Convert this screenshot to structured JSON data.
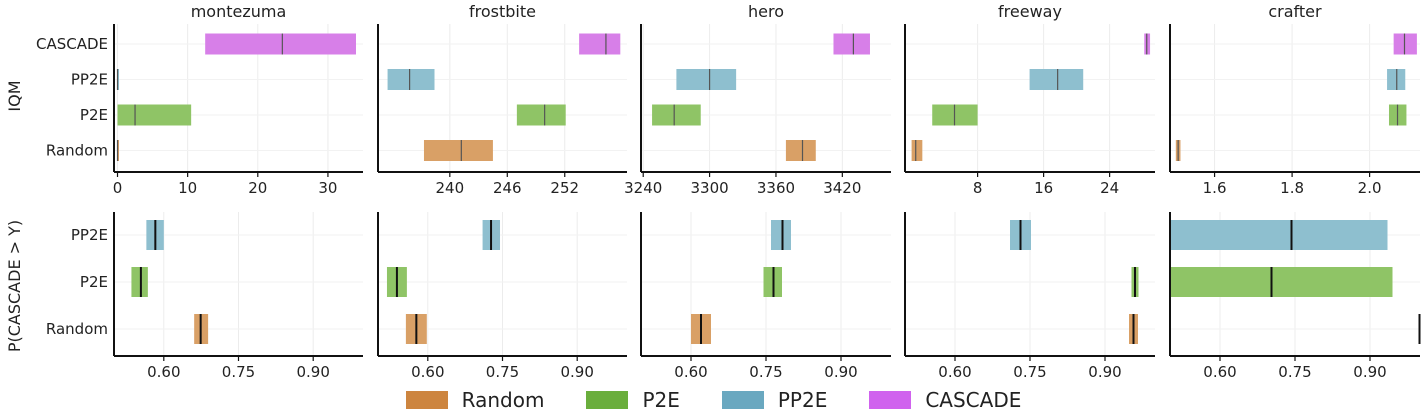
{
  "colors": {
    "Random": "#d9a066",
    "P2E": "#8fc466",
    "PP2E": "#8ebfcf",
    "CASCADE": "#d77fe8"
  },
  "legend_colors": {
    "Random": "#cd853f",
    "P2E": "#6aae3c",
    "PP2E": "#6aa8c0",
    "CASCADE": "#d062ee"
  },
  "row_labels": [
    "IQM",
    "P(CASCADE > Y)"
  ],
  "legend": [
    "Random",
    "P2E",
    "PP2E",
    "CASCADE"
  ],
  "chart_data": [
    {
      "type": "bar",
      "metric": "IQM",
      "title": "montezuma",
      "categories": [
        "CASCADE",
        "PP2E",
        "P2E",
        "Random"
      ],
      "xlim": [
        -0.5,
        35
      ],
      "xticks": [
        0,
        10,
        20,
        30
      ],
      "xtick_labels": [
        "0",
        "10",
        "20",
        "30"
      ],
      "intervals": [
        {
          "name": "CASCADE",
          "low": 12.5,
          "high": 34,
          "mid": 23.5
        },
        {
          "name": "PP2E",
          "low": 0,
          "high": 0,
          "mid": 0
        },
        {
          "name": "P2E",
          "low": 0,
          "high": 10.5,
          "mid": 2.5
        },
        {
          "name": "Random",
          "low": 0,
          "high": 0,
          "mid": 0
        }
      ]
    },
    {
      "type": "bar",
      "metric": "IQM",
      "title": "frostbite",
      "categories": [
        "CASCADE",
        "PP2E",
        "P2E",
        "Random"
      ],
      "xlim": [
        232.5,
        258.5
      ],
      "xticks": [
        240,
        246,
        252
      ],
      "xtick_labels": [
        "240",
        "246",
        "252"
      ],
      "intervals": [
        {
          "name": "CASCADE",
          "low": 253.5,
          "high": 257.8,
          "mid": 256.3
        },
        {
          "name": "PP2E",
          "low": 233.5,
          "high": 238.4,
          "mid": 235.8
        },
        {
          "name": "P2E",
          "low": 247,
          "high": 252.1,
          "mid": 249.9
        },
        {
          "name": "Random",
          "low": 237.3,
          "high": 244.5,
          "mid": 241.2
        }
      ]
    },
    {
      "type": "bar",
      "metric": "IQM",
      "title": "hero",
      "categories": [
        "CASCADE",
        "PP2E",
        "P2E",
        "Random"
      ],
      "xlim": [
        3238,
        3464
      ],
      "xticks": [
        3240,
        3300,
        3360,
        3420
      ],
      "xtick_labels": [
        "3240",
        "3300",
        "3360",
        "3420"
      ],
      "intervals": [
        {
          "name": "CASCADE",
          "low": 3412,
          "high": 3445,
          "mid": 3430
        },
        {
          "name": "PP2E",
          "low": 3270,
          "high": 3324,
          "mid": 3300
        },
        {
          "name": "P2E",
          "low": 3248,
          "high": 3292,
          "mid": 3268
        },
        {
          "name": "Random",
          "low": 3369,
          "high": 3396,
          "mid": 3384
        }
      ]
    },
    {
      "type": "bar",
      "metric": "IQM",
      "title": "freeway",
      "categories": [
        "CASCADE",
        "PP2E",
        "P2E",
        "Random"
      ],
      "xlim": [
        -0.8,
        29.5
      ],
      "xticks": [
        8,
        16,
        24
      ],
      "xtick_labels": [
        "8",
        "16",
        "24"
      ],
      "intervals": [
        {
          "name": "CASCADE",
          "low": 28.2,
          "high": 28.9,
          "mid": 28.5
        },
        {
          "name": "PP2E",
          "low": 14.3,
          "high": 20.8,
          "mid": 17.7
        },
        {
          "name": "P2E",
          "low": 2.5,
          "high": 8,
          "mid": 5.2
        },
        {
          "name": "Random",
          "low": 0,
          "high": 1.3,
          "mid": 0.5
        }
      ]
    },
    {
      "type": "bar",
      "metric": "IQM",
      "title": "crafter",
      "categories": [
        "CASCADE",
        "PP2E",
        "P2E",
        "Random"
      ],
      "xlim": [
        1.485,
        2.13
      ],
      "xticks": [
        1.6,
        1.8,
        2.0
      ],
      "xtick_labels": [
        "1.6",
        "1.8",
        "2.0"
      ],
      "intervals": [
        {
          "name": "CASCADE",
          "low": 2.062,
          "high": 2.122,
          "mid": 2.09
        },
        {
          "name": "PP2E",
          "low": 2.045,
          "high": 2.092,
          "mid": 2.07
        },
        {
          "name": "P2E",
          "low": 2.05,
          "high": 2.095,
          "mid": 2.072
        },
        {
          "name": "Random",
          "low": 1.5,
          "high": 1.512,
          "mid": 1.506
        }
      ]
    },
    {
      "type": "bar",
      "metric": "P(CASCADE > Y)",
      "title": "",
      "categories": [
        "PP2E",
        "P2E",
        "Random"
      ],
      "xlim": [
        0.5,
        1.0
      ],
      "xticks": [
        0.6,
        0.75,
        0.9
      ],
      "xtick_labels": [
        "0.60",
        "0.75",
        "0.90"
      ],
      "intervals": [
        {
          "name": "PP2E",
          "low": 0.565,
          "high": 0.6,
          "mid": 0.583
        },
        {
          "name": "P2E",
          "low": 0.535,
          "high": 0.568,
          "mid": 0.554
        },
        {
          "name": "Random",
          "low": 0.661,
          "high": 0.689,
          "mid": 0.674
        }
      ]
    },
    {
      "type": "bar",
      "metric": "P(CASCADE > Y)",
      "title": "",
      "categories": [
        "PP2E",
        "P2E",
        "Random"
      ],
      "xlim": [
        0.5,
        1.0
      ],
      "xticks": [
        0.6,
        0.75,
        0.9
      ],
      "xtick_labels": [
        "0.60",
        "0.75",
        "0.90"
      ],
      "intervals": [
        {
          "name": "PP2E",
          "low": 0.71,
          "high": 0.745,
          "mid": 0.727
        },
        {
          "name": "P2E",
          "low": 0.518,
          "high": 0.558,
          "mid": 0.538
        },
        {
          "name": "Random",
          "low": 0.556,
          "high": 0.598,
          "mid": 0.577
        }
      ]
    },
    {
      "type": "bar",
      "metric": "P(CASCADE > Y)",
      "title": "",
      "categories": [
        "PP2E",
        "P2E",
        "Random"
      ],
      "xlim": [
        0.5,
        1.0
      ],
      "xticks": [
        0.6,
        0.75,
        0.9
      ],
      "xtick_labels": [
        "0.60",
        "0.75",
        "0.90"
      ],
      "intervals": [
        {
          "name": "PP2E",
          "low": 0.76,
          "high": 0.8,
          "mid": 0.783
        },
        {
          "name": "P2E",
          "low": 0.745,
          "high": 0.782,
          "mid": 0.765
        },
        {
          "name": "Random",
          "low": 0.6,
          "high": 0.64,
          "mid": 0.62
        }
      ]
    },
    {
      "type": "bar",
      "metric": "P(CASCADE > Y)",
      "title": "",
      "categories": [
        "PP2E",
        "P2E",
        "Random"
      ],
      "xlim": [
        0.5,
        1.0
      ],
      "xticks": [
        0.6,
        0.75,
        0.9
      ],
      "xtick_labels": [
        "0.60",
        "0.75",
        "0.90"
      ],
      "intervals": [
        {
          "name": "PP2E",
          "low": 0.71,
          "high": 0.752,
          "mid": 0.731
        },
        {
          "name": "P2E",
          "low": 0.953,
          "high": 0.967,
          "mid": 0.96
        },
        {
          "name": "Random",
          "low": 0.948,
          "high": 0.966,
          "mid": 0.957
        }
      ]
    },
    {
      "type": "bar",
      "metric": "P(CASCADE > Y)",
      "title": "",
      "categories": [
        "PP2E",
        "P2E",
        "Random"
      ],
      "xlim": [
        0.5,
        1.0
      ],
      "xticks": [
        0.6,
        0.75,
        0.9
      ],
      "xtick_labels": [
        "0.60",
        "0.75",
        "0.90"
      ],
      "intervals": [
        {
          "name": "PP2E",
          "low": 0.5,
          "high": 0.935,
          "mid": 0.743
        },
        {
          "name": "P2E",
          "low": 0.5,
          "high": 0.945,
          "mid": 0.703
        },
        {
          "name": "Random",
          "low": 0.998,
          "high": 1.0,
          "mid": 0.999
        }
      ]
    }
  ]
}
